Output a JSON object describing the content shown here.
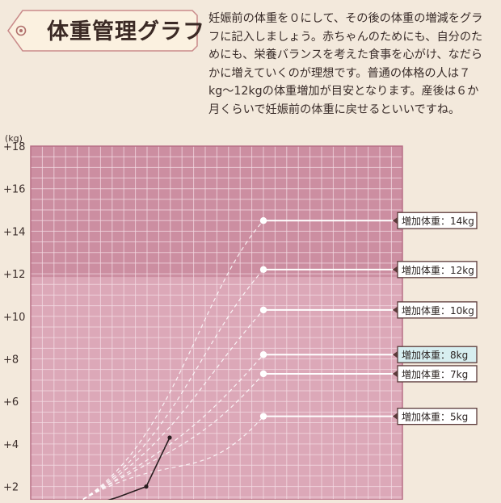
{
  "title": "体重管理グラフ",
  "intro": "妊娠前の体重を０にして、その後の体重の増減をグラフに記入しましょう。赤ちゃんのためにも、自分のためにも、栄養バランスを考えた食事を心がけ、なだらかに増えていくのが理想です。普通の体格の人は７kg〜12kgの体重増加が目安となります。産後は６か月くらいで妊娠前の体重に戻せるといいですね。",
  "colors": {
    "page": "#f3e9dc",
    "band_light": "#dca8b8",
    "band_dark": "#cc8ea1",
    "grid": "#f4dce4",
    "frame": "#b86f86",
    "curve": "#ffffff",
    "label_border": "#5b3a3a",
    "highlight_label": "#d7eef0"
  },
  "chart_data": {
    "type": "line",
    "y_unit": "(kg)",
    "ylim": [
      1.5,
      18
    ],
    "y_ticks": [
      "+18",
      "+16",
      "+14",
      "+12",
      "+10",
      "+8",
      "+6",
      "+4",
      "+2"
    ],
    "y_tick_values": [
      18,
      16,
      14,
      12,
      10,
      8,
      6,
      4,
      2
    ],
    "grid": true,
    "reference_curves": [
      {
        "label": "増加体重：14kg",
        "end_value": 14.5,
        "highlight": false
      },
      {
        "label": "増加体重：12kg",
        "end_value": 12.2,
        "highlight": false
      },
      {
        "label": "増加体重：10kg",
        "end_value": 10.3,
        "highlight": false
      },
      {
        "label": "増加体重：8kg",
        "end_value": 8.2,
        "highlight": true
      },
      {
        "label": "増加体重：7kg",
        "end_value": 7.3,
        "highlight": false
      },
      {
        "label": "増加体重：5kg",
        "end_value": 5.3,
        "highlight": false
      }
    ],
    "recorded_series": {
      "values": [
        1.1,
        1.5,
        2.0,
        4.3
      ]
    }
  }
}
